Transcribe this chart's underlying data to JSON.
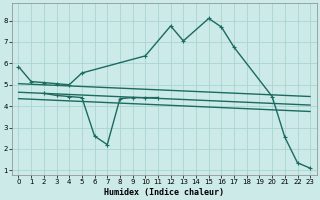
{
  "xlabel": "Humidex (Indice chaleur)",
  "xlim": [
    -0.5,
    23.5
  ],
  "ylim": [
    0.8,
    8.8
  ],
  "xticks": [
    0,
    1,
    2,
    3,
    4,
    5,
    6,
    7,
    8,
    9,
    10,
    11,
    12,
    13,
    14,
    15,
    16,
    17,
    18,
    19,
    20,
    21,
    22,
    23
  ],
  "yticks": [
    1,
    2,
    3,
    4,
    5,
    6,
    7,
    8
  ],
  "bg_color": "#cceae7",
  "grid_color": "#aad4d0",
  "line_color": "#1a6b60",
  "lines": [
    {
      "x": [
        0,
        1,
        2,
        3,
        4,
        5,
        10,
        12,
        13,
        15,
        16,
        17,
        20,
        21,
        22,
        23
      ],
      "y": [
        5.85,
        5.15,
        5.1,
        5.05,
        5.0,
        5.55,
        6.35,
        7.75,
        7.05,
        8.1,
        7.7,
        6.75,
        4.45,
        2.55,
        1.35,
        1.1
      ],
      "marker": "+",
      "lw": 1.0
    },
    {
      "x": [
        2,
        3,
        4,
        5,
        6,
        7,
        8,
        9,
        10,
        11
      ],
      "y": [
        4.6,
        4.5,
        4.45,
        4.4,
        2.6,
        2.2,
        4.35,
        4.4,
        4.4,
        4.4
      ],
      "marker": "+",
      "lw": 1.0
    },
    {
      "x": [
        0,
        23
      ],
      "y": [
        5.05,
        4.45
      ],
      "marker": null,
      "lw": 1.0
    },
    {
      "x": [
        0,
        23
      ],
      "y": [
        4.65,
        4.05
      ],
      "marker": null,
      "lw": 1.0
    },
    {
      "x": [
        0,
        23
      ],
      "y": [
        4.35,
        3.75
      ],
      "marker": null,
      "lw": 1.0
    }
  ]
}
